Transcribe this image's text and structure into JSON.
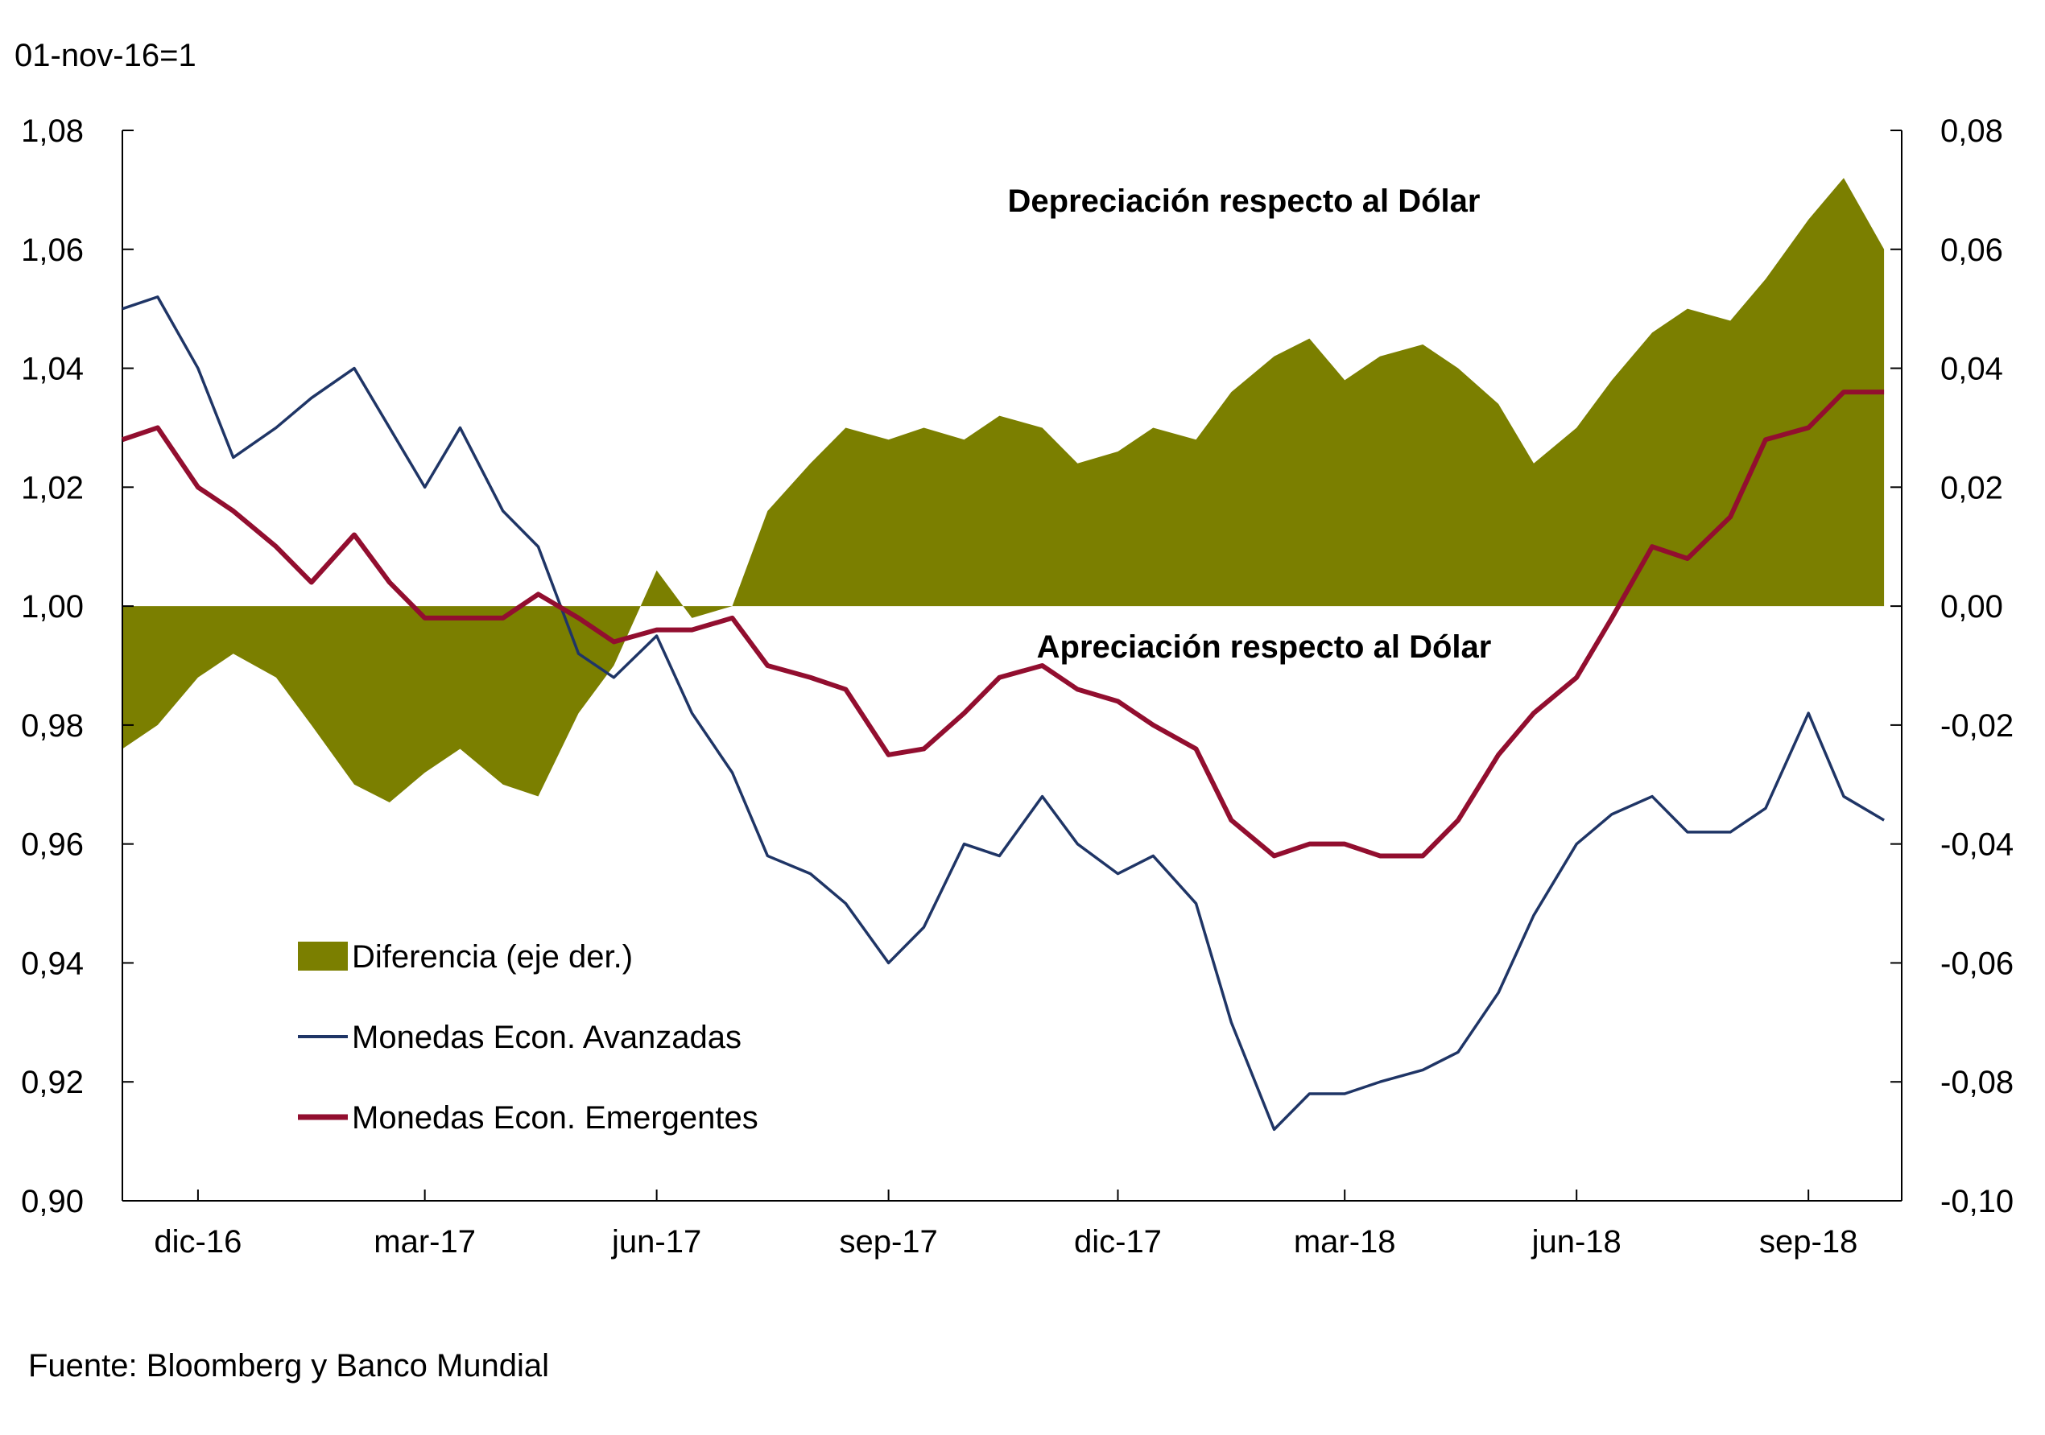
{
  "chart_data": {
    "type": "line",
    "index_label": "01-nov-16=1",
    "source_note": "Fuente: Bloomberg y Banco Mundial",
    "x_tick_labels": [
      "dic-16",
      "mar-17",
      "jun-17",
      "sep-17",
      "dic-17",
      "mar-18",
      "jun-18",
      "sep-18"
    ],
    "left_axis": {
      "ylim": [
        0.9,
        1.08
      ],
      "ticks": [
        0.9,
        0.92,
        0.94,
        0.96,
        0.98,
        1.0,
        1.02,
        1.04,
        1.06,
        1.08
      ],
      "tick_labels": [
        "0,90",
        "0,92",
        "0,94",
        "0,96",
        "0,98",
        "1,00",
        "1,02",
        "1,04",
        "1,06",
        "1,08"
      ]
    },
    "right_axis": {
      "ylim": [
        -0.1,
        0.08
      ],
      "ticks": [
        -0.1,
        -0.08,
        -0.06,
        -0.04,
        -0.02,
        0.0,
        0.02,
        0.04,
        0.06,
        0.08
      ],
      "tick_labels": [
        "-0,10",
        "-0,08",
        "-0,06",
        "-0,04",
        "-0,02",
        "0,00",
        "0,02",
        "0,04",
        "0,06",
        "0,08"
      ]
    },
    "annotations": {
      "upper": "Depreciación respecto al Dólar",
      "lower": "Apreciación respecto al Dólar"
    },
    "x_dates": [
      "2016-11-01",
      "2016-11-15",
      "2016-12-01",
      "2016-12-15",
      "2017-01-01",
      "2017-01-15",
      "2017-02-01",
      "2017-02-15",
      "2017-03-01",
      "2017-03-15",
      "2017-04-01",
      "2017-04-15",
      "2017-05-01",
      "2017-05-15",
      "2017-06-01",
      "2017-06-15",
      "2017-07-01",
      "2017-07-15",
      "2017-08-01",
      "2017-08-15",
      "2017-09-01",
      "2017-09-15",
      "2017-10-01",
      "2017-10-15",
      "2017-11-01",
      "2017-11-15",
      "2017-12-01",
      "2017-12-15",
      "2018-01-01",
      "2018-01-15",
      "2018-02-01",
      "2018-02-15",
      "2018-03-01",
      "2018-03-15",
      "2018-04-01",
      "2018-04-15",
      "2018-05-01",
      "2018-05-15",
      "2018-06-01",
      "2018-06-15",
      "2018-07-01",
      "2018-07-15",
      "2018-08-01",
      "2018-08-15",
      "2018-09-01",
      "2018-09-15",
      "2018-10-01"
    ],
    "series": [
      {
        "name": "Diferencia (eje der.)",
        "axis": "right",
        "kind": "area",
        "color": "#7b7f00",
        "values": [
          -0.024,
          -0.02,
          -0.012,
          -0.008,
          -0.012,
          -0.02,
          -0.03,
          -0.033,
          -0.028,
          -0.024,
          -0.03,
          -0.032,
          -0.018,
          -0.01,
          0.006,
          -0.002,
          0.0,
          0.016,
          0.024,
          0.03,
          0.028,
          0.03,
          0.028,
          0.032,
          0.03,
          0.024,
          0.026,
          0.03,
          0.028,
          0.036,
          0.042,
          0.045,
          0.038,
          0.042,
          0.044,
          0.04,
          0.034,
          0.024,
          0.03,
          0.038,
          0.046,
          0.05,
          0.048,
          0.055,
          0.065,
          0.072,
          0.06
        ]
      },
      {
        "name": "Monedas Econ. Avanzadas",
        "axis": "left",
        "kind": "line",
        "color": "#1f3566",
        "values": [
          1.05,
          1.052,
          1.04,
          1.025,
          1.03,
          1.035,
          1.04,
          1.03,
          1.02,
          1.03,
          1.016,
          1.01,
          0.992,
          0.988,
          0.995,
          0.982,
          0.972,
          0.958,
          0.955,
          0.95,
          0.94,
          0.946,
          0.96,
          0.958,
          0.968,
          0.96,
          0.955,
          0.958,
          0.95,
          0.93,
          0.912,
          0.918,
          0.918,
          0.92,
          0.922,
          0.925,
          0.935,
          0.948,
          0.96,
          0.965,
          0.968,
          0.962,
          0.962,
          0.966,
          0.982,
          0.968,
          0.964
        ]
      },
      {
        "name": "Monedas Econ. Emergentes",
        "axis": "left",
        "kind": "line",
        "color": "#920e2f",
        "values": [
          1.028,
          1.03,
          1.02,
          1.016,
          1.01,
          1.004,
          1.012,
          1.004,
          0.998,
          0.998,
          0.998,
          1.002,
          0.998,
          0.994,
          0.996,
          0.996,
          0.998,
          0.99,
          0.988,
          0.986,
          0.975,
          0.976,
          0.982,
          0.988,
          0.99,
          0.986,
          0.984,
          0.98,
          0.976,
          0.964,
          0.958,
          0.96,
          0.96,
          0.958,
          0.958,
          0.964,
          0.975,
          0.982,
          0.988,
          0.998,
          1.01,
          1.008,
          1.015,
          1.028,
          1.03,
          1.036,
          1.036
        ]
      }
    ]
  }
}
